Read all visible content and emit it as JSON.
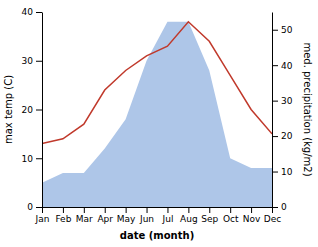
{
  "chart_data": {
    "type": "line",
    "xlabel": "date (month)",
    "ylabel": "max temp (C)",
    "y2label": "med. precipitation (kg/m2)",
    "categories": [
      "Jan",
      "Feb",
      "Mar",
      "Apr",
      "May",
      "Jun",
      "Jul",
      "Aug",
      "Sep",
      "Oct",
      "Nov",
      "Dec"
    ],
    "series": [
      {
        "type": "area",
        "color": "#aec6e8",
        "values": [
          5,
          7,
          7,
          12,
          18,
          30,
          38,
          38,
          28,
          10,
          8,
          8
        ]
      },
      {
        "type": "line",
        "color": "#c0392b",
        "values": [
          13,
          14,
          17,
          24,
          28,
          31,
          33,
          38,
          34,
          27,
          20,
          15
        ]
      }
    ],
    "ylim": [
      0,
      40
    ],
    "yticks": [
      0,
      10,
      20,
      30,
      40
    ],
    "y2lim": [
      0,
      55
    ],
    "y2ticks": [
      0,
      10,
      20,
      30,
      40,
      50
    ],
    "grid": false
  }
}
